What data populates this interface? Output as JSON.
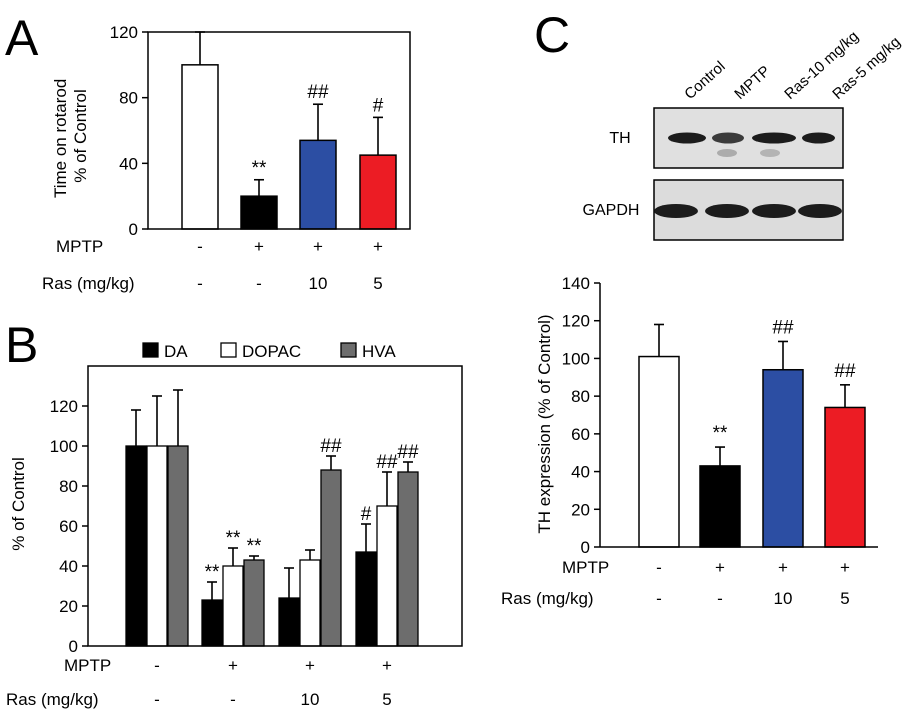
{
  "colors": {
    "open_bar": "#ffffff",
    "mptp_bar": "#000000",
    "ras10_bar": "#2c4ea3",
    "ras5_bar": "#ec1c24",
    "da": "#000000",
    "dopac": "#ffffff",
    "hva": "#6d6d6d"
  },
  "panels": {
    "a": {
      "letter": "A"
    },
    "b": {
      "letter": "B"
    },
    "c": {
      "letter": "C"
    }
  },
  "conditions": {
    "mptp_label": "MPTP",
    "ras_label": "Ras (mg/kg)",
    "mptp": [
      "-",
      "+",
      "+",
      "+"
    ],
    "ras": [
      "-",
      "-",
      "10",
      "5"
    ]
  },
  "blot": {
    "lanes": [
      "Control",
      "MPTP",
      "Ras-10 mg/kg",
      "Ras-5 mg/kg"
    ],
    "rows": [
      "TH",
      "GAPDH"
    ]
  },
  "chart_data": [
    {
      "panel": "A",
      "type": "bar",
      "ylabel": "Time on rotarod\n% of Control",
      "ylim": [
        0,
        120
      ],
      "yticks": [
        0,
        40,
        80,
        120
      ],
      "categories": [
        "Control",
        "MPTP",
        "MPTP + Ras 10",
        "MPTP + Ras 5"
      ],
      "values": [
        100,
        20,
        54,
        45
      ],
      "errors": [
        20,
        10,
        22,
        23
      ],
      "significance": [
        "",
        "**",
        "##",
        "#"
      ]
    },
    {
      "panel": "B",
      "type": "bar",
      "ylabel": "% of Control",
      "ylim": [
        0,
        140
      ],
      "yticks": [
        0,
        20,
        40,
        60,
        80,
        100,
        120
      ],
      "categories": [
        "Control",
        "MPTP",
        "MPTP + Ras 10",
        "MPTP + Ras 5"
      ],
      "legend_position": "top",
      "series": [
        {
          "name": "DA",
          "values": [
            100,
            23,
            24,
            47
          ],
          "errors": [
            18,
            9,
            15,
            14
          ],
          "significance": [
            "",
            "**",
            "",
            "#"
          ]
        },
        {
          "name": "DOPAC",
          "values": [
            100,
            40,
            43,
            70
          ],
          "errors": [
            25,
            9,
            5,
            17
          ],
          "significance": [
            "",
            "**",
            "",
            "##"
          ]
        },
        {
          "name": "HVA",
          "values": [
            100,
            43,
            88,
            87
          ],
          "errors": [
            28,
            2,
            7,
            5
          ],
          "significance": [
            "",
            "**",
            "##",
            "##"
          ]
        }
      ]
    },
    {
      "panel": "C",
      "type": "bar",
      "ylabel": "TH expression (% of Control)",
      "ylim": [
        0,
        140
      ],
      "yticks": [
        0,
        20,
        40,
        60,
        80,
        100,
        120,
        140
      ],
      "categories": [
        "Control",
        "MPTP",
        "MPTP + Ras 10",
        "MPTP + Ras 5"
      ],
      "values": [
        101,
        43,
        94,
        74
      ],
      "errors": [
        17,
        10,
        15,
        12
      ],
      "significance": [
        "",
        "**",
        "##",
        "##"
      ]
    }
  ]
}
